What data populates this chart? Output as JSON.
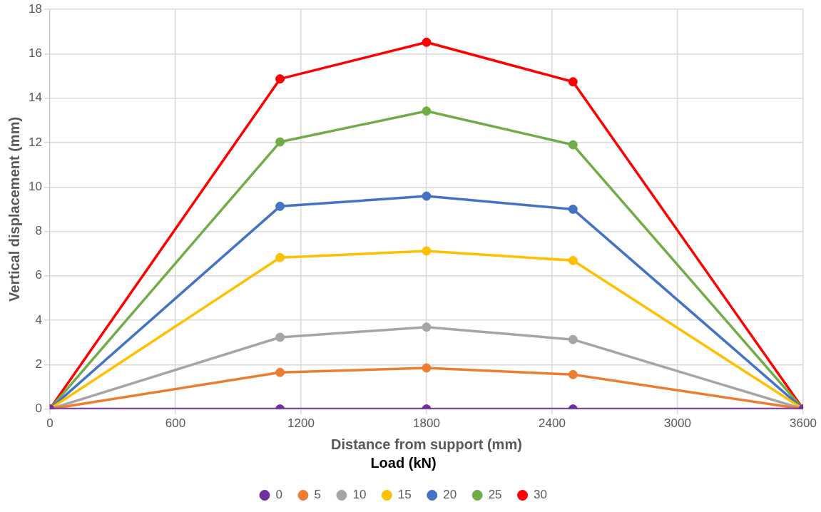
{
  "chart_data": {
    "type": "line",
    "xlabel": "Distance from support (mm)",
    "ylabel": "Vertical displacement (mm)",
    "legend_title": "Load (kN)",
    "legend": "bottom",
    "grid": true,
    "marker": "circle",
    "line_style": "solid",
    "x": [
      0,
      1100,
      1800,
      2500,
      3600
    ],
    "xlim": [
      0,
      3600
    ],
    "xticks": [
      0,
      600,
      1200,
      1800,
      2400,
      3000,
      3600
    ],
    "ylim": [
      0,
      18
    ],
    "yticks": [
      0,
      2,
      4,
      6,
      8,
      10,
      12,
      14,
      16,
      18
    ],
    "series": [
      {
        "name": "0",
        "color": "#7030a0",
        "values": [
          0,
          0,
          0,
          0,
          0
        ]
      },
      {
        "name": "5",
        "color": "#ed7d31",
        "values": [
          0,
          1.65,
          1.85,
          1.55,
          0
        ]
      },
      {
        "name": "10",
        "color": "#a5a5a5",
        "values": [
          0,
          3.23,
          3.69,
          3.13,
          0
        ]
      },
      {
        "name": "15",
        "color": "#ffc000",
        "values": [
          0,
          6.82,
          7.12,
          6.69,
          0
        ]
      },
      {
        "name": "20",
        "color": "#4472c4",
        "values": [
          0,
          9.13,
          9.59,
          9.0,
          0
        ]
      },
      {
        "name": "25",
        "color": "#70ad47",
        "values": [
          0,
          12.03,
          13.42,
          11.9,
          0
        ]
      },
      {
        "name": "30",
        "color": "#ff0000",
        "values": [
          0,
          14.87,
          16.52,
          14.74,
          0
        ]
      }
    ]
  }
}
